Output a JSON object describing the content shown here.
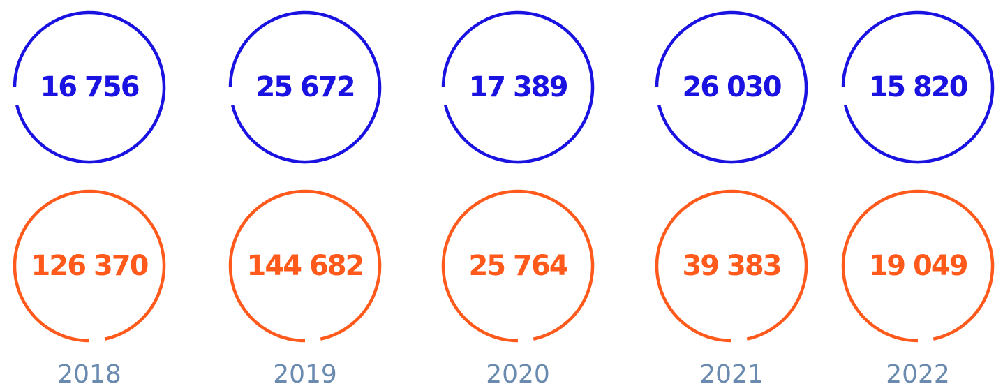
{
  "columns": [
    {
      "top": "16 756",
      "bottom": "126 370",
      "year": "2018"
    },
    {
      "top": "25 672",
      "bottom": "144 682",
      "year": "2019"
    },
    {
      "top": "17 389",
      "bottom": "25 764",
      "year": "2020"
    },
    {
      "top": "26 030",
      "bottom": "39 383",
      "year": "2021"
    },
    {
      "top": "15 820",
      "bottom": "19 049",
      "year": "2022"
    }
  ]
}
